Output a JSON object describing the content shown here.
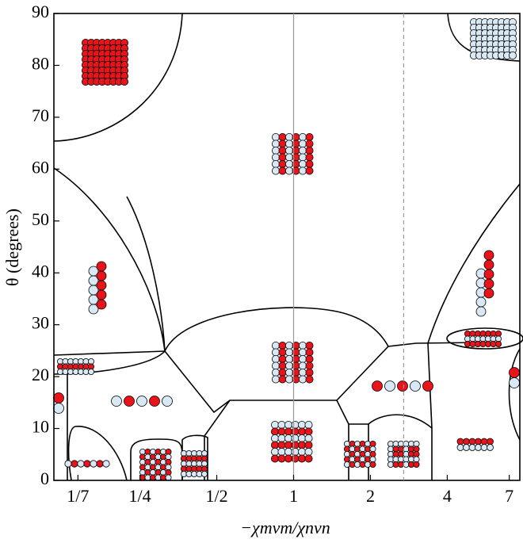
{
  "chart_data": {
    "type": "phase-diagram",
    "xlabel": "−χmvm/χnvn",
    "ylabel": "θ (degrees)",
    "xscale": "log",
    "xlim": [
      0.115,
      7.7
    ],
    "xticks": [
      {
        "value": 0.142857,
        "label": "1/7"
      },
      {
        "value": 0.25,
        "label": "1/4"
      },
      {
        "value": 0.5,
        "label": "1/2"
      },
      1,
      2,
      4,
      7
    ],
    "ylim": [
      0,
      90
    ],
    "yticks": [
      0,
      10,
      20,
      30,
      40,
      50,
      60,
      70,
      80,
      90
    ],
    "reference_lines": [
      {
        "value": 1,
        "style": "solid"
      },
      {
        "value": 2.7,
        "style": "dashed"
      }
    ]
  }
}
